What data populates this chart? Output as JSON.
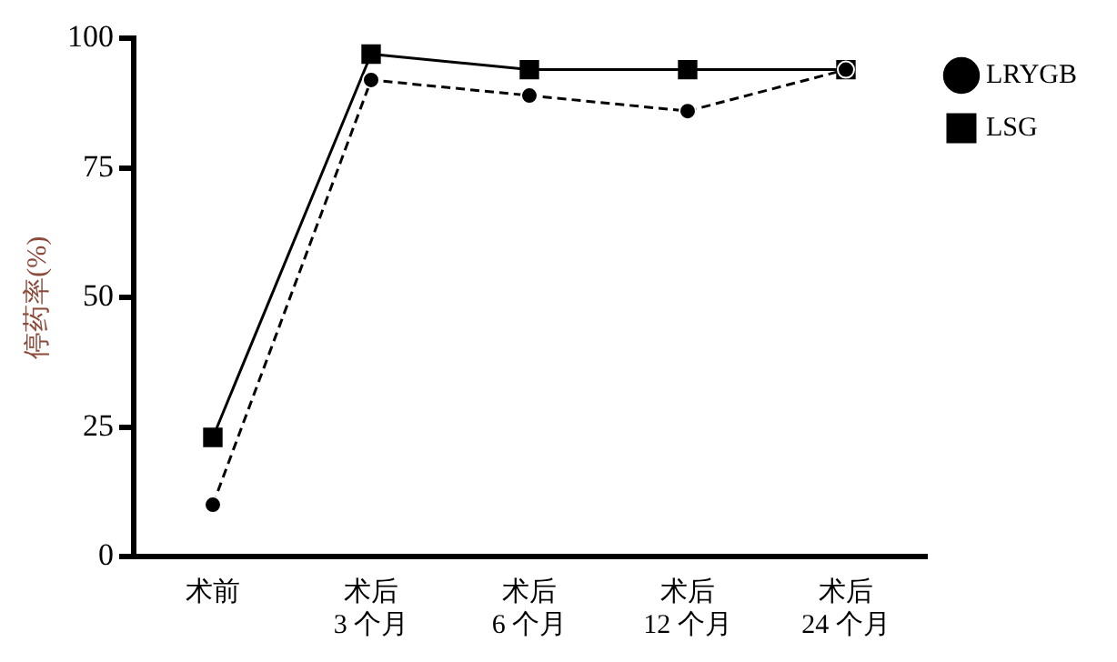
{
  "chart_data": {
    "type": "line",
    "ylabel": "停药率(%)",
    "categories": [
      "术前",
      "术后\n3 个月",
      "术后\n6 个月",
      "术后\n12 个月",
      "术后\n24 个月"
    ],
    "series": [
      {
        "name": "LRYGB",
        "color": "#000000",
        "values": [
          10,
          92,
          89,
          86,
          94
        ],
        "marker": "circle",
        "line_style": "dashed"
      },
      {
        "name": "LSG",
        "color": "#000000",
        "values": [
          23,
          97,
          94,
          94,
          94
        ],
        "marker": "square",
        "line_style": "solid"
      }
    ],
    "ylim": [
      0,
      100
    ],
    "yticks": [
      0,
      25,
      50,
      75,
      100
    ],
    "grid": false,
    "legend": "top right"
  }
}
